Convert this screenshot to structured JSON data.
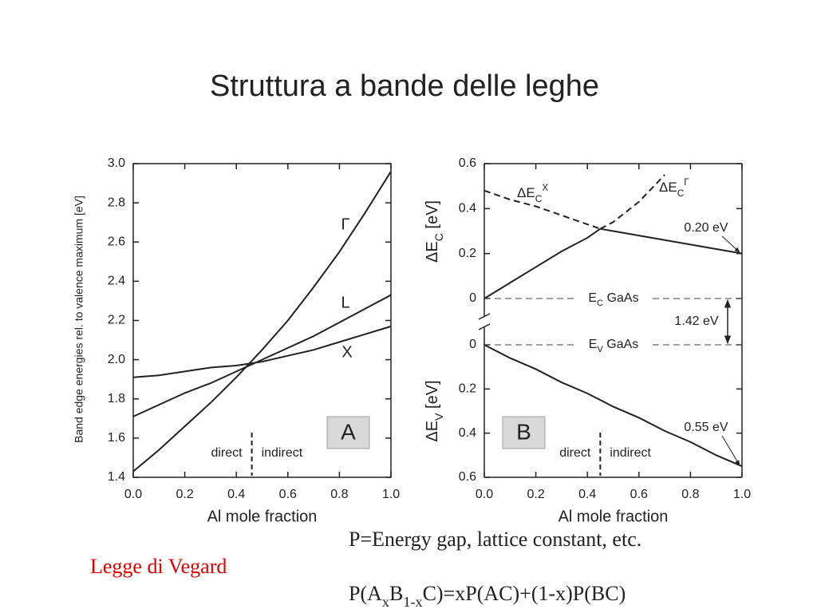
{
  "title": "Struttura a bande delle leghe",
  "chart_data": [
    {
      "type": "line",
      "xlabel": "Al mole fraction",
      "ylabel": "Band edge energies rel. to valence maximum [eV]",
      "x": [
        0,
        0.1,
        0.2,
        0.3,
        0.4,
        0.5,
        0.6,
        0.7,
        0.8,
        0.9,
        1.0
      ],
      "xlim": [
        0,
        1
      ],
      "ylim": [
        1.4,
        3.0
      ],
      "xticks": [
        {
          "value": 0,
          "label": "0.0"
        },
        0.2,
        0.4,
        0.6,
        0.8,
        {
          "value": 1,
          "label": "1.0"
        }
      ],
      "yticks": [
        1.4,
        1.6,
        1.8,
        {
          "value": 2,
          "label": "2.0"
        },
        2.2,
        2.4,
        2.6,
        2.8,
        {
          "value": 3,
          "label": "3.0"
        }
      ],
      "series": [
        {
          "name": "Γ",
          "color": "#222222",
          "values": [
            1.43,
            1.54,
            1.66,
            1.78,
            1.91,
            2.05,
            2.2,
            2.37,
            2.55,
            2.75,
            2.96
          ]
        },
        {
          "name": "L",
          "color": "#222222",
          "values": [
            1.71,
            1.77,
            1.83,
            1.88,
            1.94,
            2.0,
            2.06,
            2.12,
            2.19,
            2.26,
            2.33
          ]
        },
        {
          "name": "X",
          "color": "#222222",
          "values": [
            1.91,
            1.92,
            1.94,
            1.96,
            1.97,
            1.99,
            2.02,
            2.05,
            2.09,
            2.13,
            2.17
          ]
        }
      ],
      "crossover": 0.46,
      "regime_labels": [
        "direct",
        "indirect"
      ],
      "panel_label": "A"
    },
    {
      "type": "line",
      "ylabel": [
        "ΔE",
        "C",
        " [eV]"
      ],
      "x": [
        0,
        0.1,
        0.2,
        0.3,
        0.4,
        0.45,
        0.5,
        0.6,
        0.7,
        0.8,
        0.9,
        1.0
      ],
      "xlim": [
        0,
        1
      ],
      "ylim": [
        0,
        0.6
      ],
      "yticks": [
        0,
        0.2,
        0.4,
        0.6
      ],
      "crossover": 0.45,
      "series": [
        {
          "name": [
            "ΔE",
            "C",
            "X"
          ],
          "color": "#222222",
          "linestyle": [
            "dashed",
            "solid"
          ],
          "values": [
            0.48,
            0.44,
            0.41,
            0.37,
            0.33,
            0.31,
            0.3,
            0.28,
            0.26,
            0.24,
            0.22,
            0.2
          ]
        },
        {
          "name": [
            "ΔE",
            "C",
            "Γ"
          ],
          "color": "#222222",
          "linestyle": [
            "solid",
            "dashed"
          ],
          "values": [
            0,
            0.07,
            0.14,
            0.21,
            0.27,
            0.31,
            0.34,
            0.43,
            0.55,
            null,
            null,
            null
          ]
        }
      ],
      "annotation": "0.20 eV",
      "band_edge": [
        "E",
        "C",
        " GaAs"
      ],
      "gap_label": "1.42 eV"
    },
    {
      "type": "line",
      "inverted": true,
      "xlabel": "Al mole fraction",
      "ylabel": [
        "ΔE",
        "V",
        " [eV]"
      ],
      "x": [
        0,
        0.1,
        0.2,
        0.3,
        0.4,
        0.45,
        0.5,
        0.6,
        0.7,
        0.8,
        0.9,
        1.0
      ],
      "xlim": [
        0,
        1
      ],
      "ylim": [
        0,
        0.6
      ],
      "xticks": [
        {
          "value": 0,
          "label": "0.0"
        },
        0.2,
        0.4,
        0.6,
        0.8,
        {
          "value": 1,
          "label": "1.0"
        }
      ],
      "yticks": [
        0,
        0.2,
        0.4,
        0.6
      ],
      "series": [
        {
          "color": "#222222",
          "values": [
            0,
            0.06,
            0.11,
            0.17,
            0.22,
            0.25,
            0.28,
            0.33,
            0.39,
            0.44,
            0.5,
            0.55
          ]
        }
      ],
      "crossover": 0.45,
      "regime_labels": [
        "direct",
        "indirect"
      ],
      "panel_label": "B",
      "annotation": "0.55 eV",
      "band_edge": [
        "E",
        "V",
        " GaAs"
      ]
    }
  ],
  "footer": {
    "law": "Legge di Vegard",
    "note": "P=Energy gap, lattice constant, etc.",
    "formula": [
      "P(A",
      "x",
      "B",
      "1-x",
      "C)=xP(AC)+(1-x)P(BC)"
    ]
  }
}
